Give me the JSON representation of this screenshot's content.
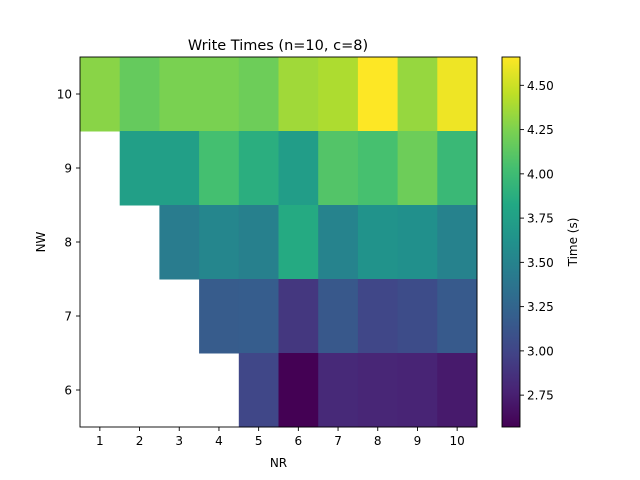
{
  "chart_data": {
    "type": "heatmap",
    "title": "Write Times (n=10, c=8)",
    "xlabel": "NR",
    "ylabel": "NW",
    "x_categories": [
      "1",
      "2",
      "3",
      "4",
      "5",
      "6",
      "7",
      "8",
      "9",
      "10"
    ],
    "y_categories": [
      "6",
      "7",
      "8",
      "9",
      "10"
    ],
    "grid": false,
    "colormap": "viridis",
    "vmin": 2.57,
    "vmax": 4.66,
    "colorbar": {
      "label": "Time (s)",
      "ticks": [
        2.75,
        3.0,
        3.25,
        3.5,
        3.75,
        4.0,
        4.25,
        4.5
      ],
      "tick_labels": [
        "2.75",
        "3.00",
        "3.25",
        "3.50",
        "3.75",
        "4.00",
        "4.25",
        "4.50"
      ]
    },
    "values": [
      {
        "nw": 10,
        "values": [
          4.29,
          4.16,
          4.24,
          4.24,
          4.19,
          4.36,
          4.4,
          4.66,
          4.33,
          4.61
        ]
      },
      {
        "nw": 9,
        "values": [
          null,
          3.74,
          3.74,
          4.03,
          3.88,
          3.72,
          4.09,
          4.04,
          4.19,
          3.97
        ]
      },
      {
        "nw": 8,
        "values": [
          null,
          null,
          3.44,
          3.52,
          3.47,
          3.84,
          3.5,
          3.63,
          3.61,
          3.49
        ]
      },
      {
        "nw": 7,
        "values": [
          null,
          null,
          null,
          3.17,
          3.18,
          2.9,
          3.14,
          3.01,
          3.05,
          3.16
        ]
      },
      {
        "nw": 6,
        "values": [
          null,
          null,
          null,
          null,
          3.01,
          2.57,
          2.81,
          2.79,
          2.78,
          2.72
        ]
      }
    ]
  }
}
